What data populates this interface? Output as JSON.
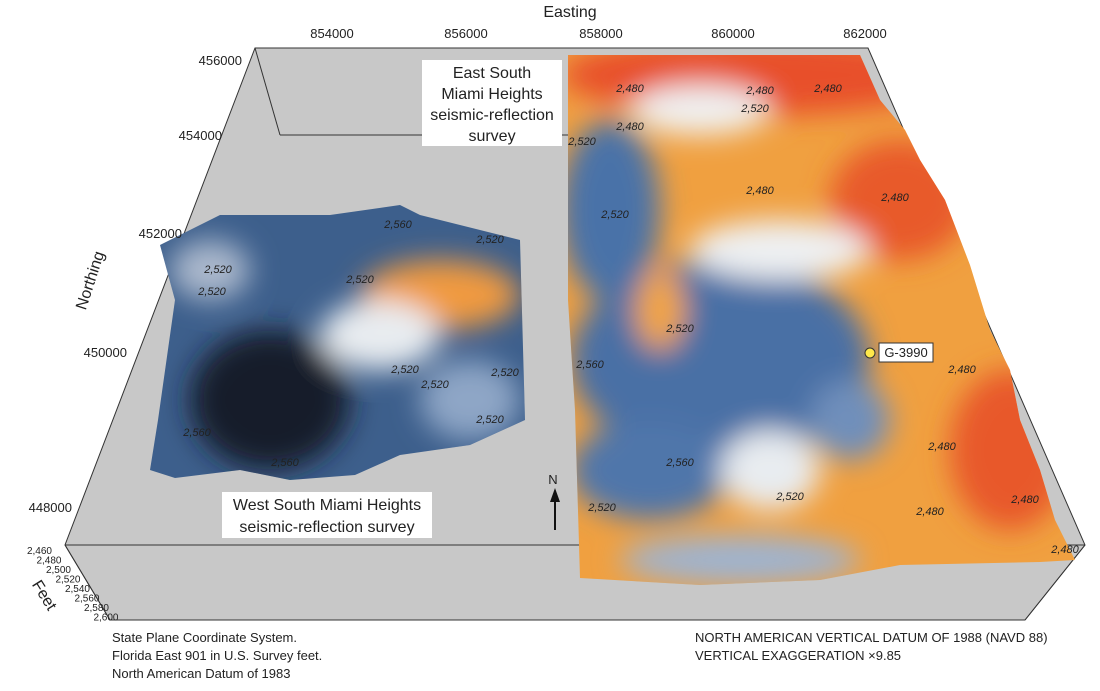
{
  "axes": {
    "x_title": "Easting",
    "x_ticks": [
      "854000",
      "856000",
      "858000",
      "860000",
      "862000"
    ],
    "y_title": "Northing",
    "y_ticks": [
      "456000",
      "454000",
      "452000",
      "450000",
      "448000"
    ],
    "z_title": "Feet",
    "z_ticks": [
      "2,460",
      "2,480",
      "2,500",
      "2,520",
      "2,540",
      "2,560",
      "2,580",
      "2,600"
    ]
  },
  "surveys": {
    "east": [
      "East South",
      "Miami Heights",
      "seismic-reflection",
      "survey"
    ],
    "west": [
      "West South Miami Heights",
      "seismic-reflection survey"
    ]
  },
  "contour_labels": [
    "2,480",
    "2,480",
    "2,480",
    "2,520",
    "2,480",
    "2,520",
    "2,480",
    "2,480",
    "2,520",
    "2,520",
    "2,560",
    "2,520",
    "2,520",
    "2,520",
    "2,520",
    "2,520",
    "2,520",
    "2,520",
    "2,560",
    "2,560",
    "2,520",
    "2,560",
    "2,560",
    "2,480",
    "2,480",
    "2,480",
    "2,480",
    "2,520",
    "2,520",
    "2,480"
  ],
  "well": "G-3990",
  "north_arrow": "N",
  "notes": {
    "left": [
      "State Plane Coordinate System.",
      "Florida East 901 in U.S. Survey feet.",
      "North American Datum of 1983"
    ],
    "right": [
      "NORTH AMERICAN VERTICAL DATUM OF 1988 (NAVD 88)",
      "VERTICAL EXAGGERATION ×9.85"
    ]
  }
}
